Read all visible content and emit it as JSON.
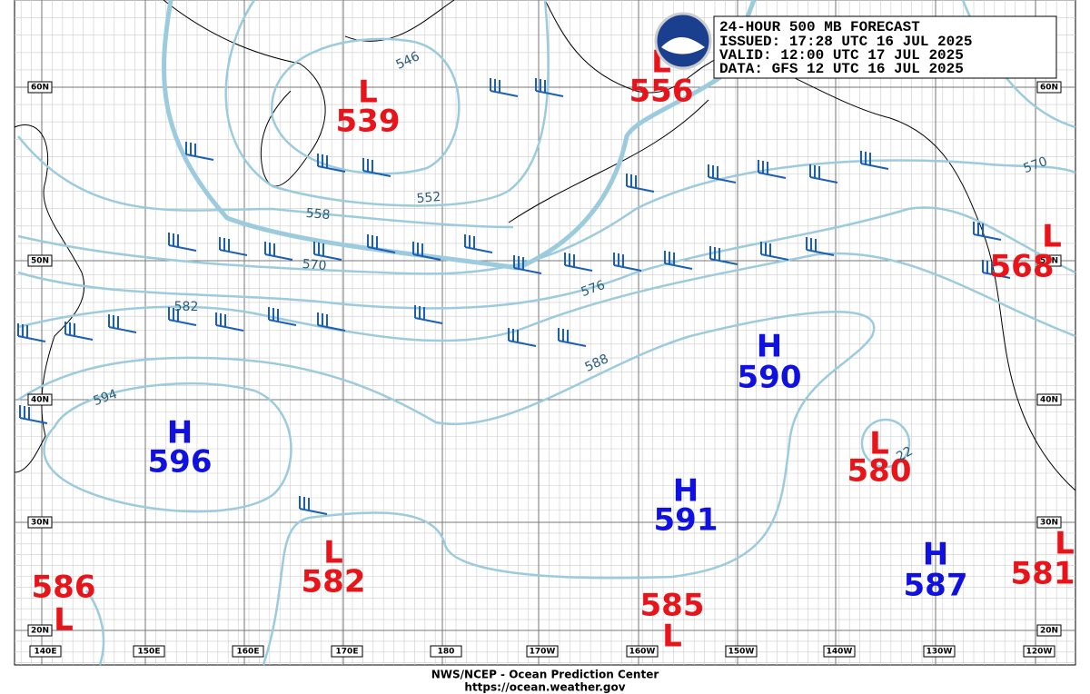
{
  "header": {
    "lines": [
      "24-HOUR 500 MB FORECAST",
      "ISSUED: 17:28 UTC 16 JUL 2025",
      "VALID:  12:00 UTC 17 JUL 2025",
      "DATA:   GFS 12 UTC 16 JUL 2025"
    ]
  },
  "latitude_labels": [
    "60N",
    "50N",
    "40N",
    "30N",
    "20N"
  ],
  "longitude_labels": [
    "140E",
    "150E",
    "160E",
    "170E",
    "180",
    "170W",
    "160W",
    "150W",
    "140W",
    "130W",
    "120W"
  ],
  "centers": [
    {
      "type": "L",
      "value": "539"
    },
    {
      "type": "L",
      "value": "556"
    },
    {
      "type": "L",
      "value": "568"
    },
    {
      "type": "H",
      "value": "590"
    },
    {
      "type": "H",
      "value": "596"
    },
    {
      "type": "H",
      "value": "591"
    },
    {
      "type": "L",
      "value": "580"
    },
    {
      "type": "L",
      "value": "582"
    },
    {
      "type": "H",
      "value": "587"
    },
    {
      "type": "L",
      "value": "581"
    },
    {
      "type": "L",
      "value": "585"
    },
    {
      "type": "L",
      "value": "586"
    }
  ],
  "contour_labels": [
    "546",
    "552",
    "558",
    "570",
    "576",
    "582",
    "588",
    "594",
    "570",
    "22"
  ],
  "footer": {
    "lines": [
      "NWS/NCEP - Ocean Prediction Center",
      "https://ocean.weather.gov"
    ]
  }
}
